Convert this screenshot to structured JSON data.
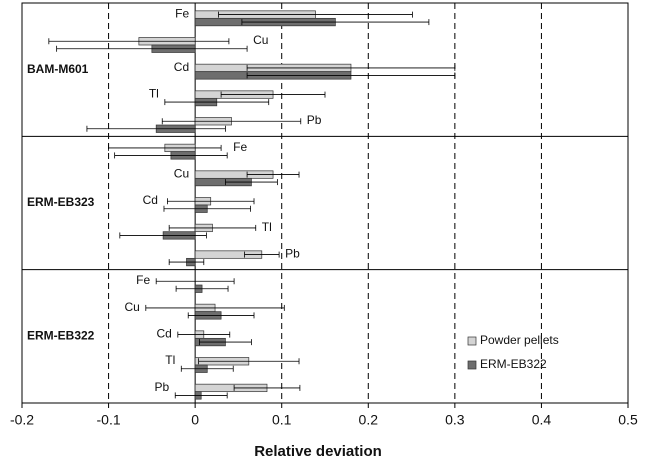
{
  "chart_data": {
    "type": "bar",
    "orientation": "horizontal",
    "xlabel": "Relative deviation",
    "xlim": [
      -0.2,
      0.5
    ],
    "xticks": [
      -0.2,
      -0.1,
      0,
      0.1,
      0.2,
      0.3,
      0.4,
      0.5
    ],
    "grid": "dashed",
    "legend": "right",
    "series": [
      {
        "name": "Powder pellets",
        "color": "#d4d4d4"
      },
      {
        "name": "ERM-EB322",
        "color": "#6e6e6e"
      }
    ],
    "groups": [
      {
        "name": "BAM-M601",
        "categories": [
          "Fe",
          "Cu",
          "Cd",
          "Tl",
          "Pb"
        ],
        "values": [
          [
            0.139,
            0.162
          ],
          [
            -0.065,
            -0.05
          ],
          [
            0.18,
            0.18
          ],
          [
            0.09,
            0.025
          ],
          [
            0.042,
            -0.045
          ]
        ],
        "errors": [
          [
            0.112,
            0.108
          ],
          [
            0.104,
            0.11
          ],
          [
            0.12,
            0.12
          ],
          [
            0.06,
            0.06
          ],
          [
            0.08,
            0.08
          ]
        ]
      },
      {
        "name": "ERM-EB323",
        "categories": [
          "Fe",
          "Cu",
          "Cd",
          "Tl",
          "Pb"
        ],
        "values": [
          [
            -0.035,
            -0.028
          ],
          [
            0.09,
            0.065
          ],
          [
            0.018,
            0.014
          ],
          [
            0.02,
            -0.037
          ],
          [
            0.077,
            -0.01
          ]
        ],
        "errors": [
          [
            0.065,
            0.065
          ],
          [
            0.03,
            0.03
          ],
          [
            0.05,
            0.05
          ],
          [
            0.05,
            0.05
          ],
          [
            0.02,
            0.02
          ]
        ]
      },
      {
        "name": "ERM-EB322",
        "categories": [
          "Fe",
          "Cu",
          "Cd",
          "Tl",
          "Pb"
        ],
        "values": [
          [
            0,
            0.008
          ],
          [
            0.023,
            0.03
          ],
          [
            0.01,
            0.035
          ],
          [
            0.062,
            0.014
          ],
          [
            0.083,
            0.007
          ]
        ],
        "errors": [
          [
            0.045,
            0.03
          ],
          [
            0.08,
            0.038
          ],
          [
            0.03,
            0.03
          ],
          [
            0.058,
            0.03
          ],
          [
            0.038,
            0.03
          ]
        ]
      }
    ]
  }
}
